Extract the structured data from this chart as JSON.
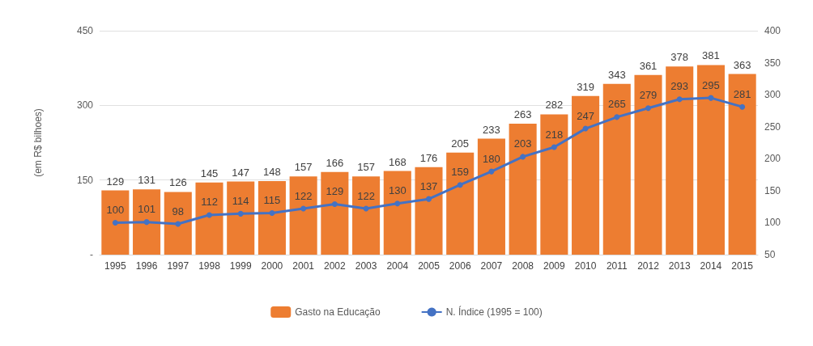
{
  "chart_data": {
    "type": "bar",
    "ylabel": "(em R$ bilhoes)",
    "categories": [
      "1995",
      "1996",
      "1997",
      "1998",
      "1999",
      "2000",
      "2001",
      "2002",
      "2003",
      "2004",
      "2005",
      "2006",
      "2007",
      "2008",
      "2009",
      "2010",
      "2011",
      "2012",
      "2013",
      "2014",
      "2015"
    ],
    "series": [
      {
        "name": "Gasto na Educação",
        "color": "#ed7d31",
        "values": [
          129,
          131,
          126,
          145,
          147,
          148,
          157,
          166,
          157,
          168,
          176,
          205,
          233,
          263,
          282,
          319,
          343,
          361,
          378,
          381,
          363
        ]
      },
      {
        "name": "N. Índice (1995 = 100)",
        "type": "line",
        "axis": "y2",
        "color": "#4472c4",
        "marker": "circle",
        "values": [
          100,
          101,
          98,
          112,
          114,
          115,
          122,
          129,
          122,
          130,
          137,
          159,
          180,
          203,
          218,
          247,
          265,
          279,
          293,
          295,
          281
        ]
      }
    ],
    "ylim": [
      0,
      450
    ],
    "yticks": [
      {
        "value": 0,
        "label": "-"
      },
      150,
      300,
      450
    ],
    "y2lim": [
      50,
      400
    ],
    "y2ticks": [
      50,
      100,
      150,
      200,
      250,
      300,
      350,
      400
    ],
    "data_labels": true,
    "grid": "y",
    "legend": "bottom"
  }
}
